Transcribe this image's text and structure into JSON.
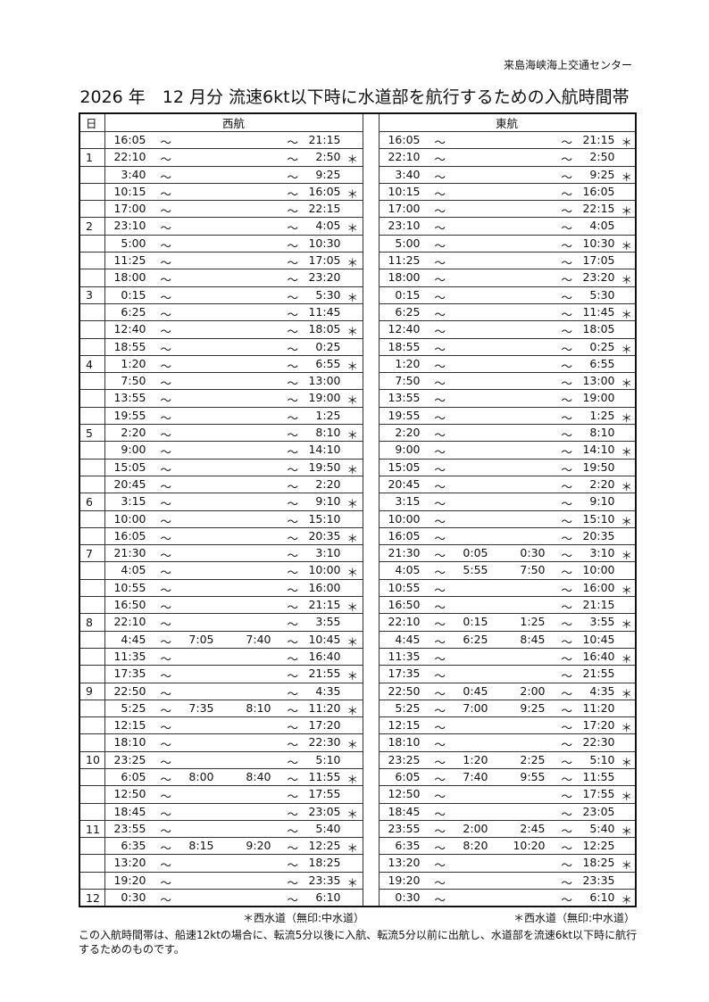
{
  "header": {
    "organization": "来島海峡海上交通センター",
    "title": "2026 年　12 月分 流速6kt以下時に水道部を航行するための入航時間帯"
  },
  "columns": {
    "day": "日",
    "west": "西航",
    "east": "東航"
  },
  "tilde": "～",
  "rows": [
    [
      "",
      "16:05",
      "",
      "",
      "21:15",
      "",
      "16:05",
      "",
      "",
      "21:15",
      "＊"
    ],
    [
      "1",
      "22:10",
      "",
      "",
      "2:50",
      "＊",
      "22:10",
      "",
      "",
      "2:50",
      ""
    ],
    [
      "",
      "3:40",
      "",
      "",
      "9:25",
      "",
      "3:40",
      "",
      "",
      "9:25",
      "＊"
    ],
    [
      "",
      "10:15",
      "",
      "",
      "16:05",
      "＊",
      "10:15",
      "",
      "",
      "16:05",
      ""
    ],
    [
      "",
      "17:00",
      "",
      "",
      "22:15",
      "",
      "17:00",
      "",
      "",
      "22:15",
      "＊"
    ],
    [
      "2",
      "23:10",
      "",
      "",
      "4:05",
      "＊",
      "23:10",
      "",
      "",
      "4:05",
      ""
    ],
    [
      "",
      "5:00",
      "",
      "",
      "10:30",
      "",
      "5:00",
      "",
      "",
      "10:30",
      "＊"
    ],
    [
      "",
      "11:25",
      "",
      "",
      "17:05",
      "＊",
      "11:25",
      "",
      "",
      "17:05",
      ""
    ],
    [
      "",
      "18:00",
      "",
      "",
      "23:20",
      "",
      "18:00",
      "",
      "",
      "23:20",
      "＊"
    ],
    [
      "3",
      "0:15",
      "",
      "",
      "5:30",
      "＊",
      "0:15",
      "",
      "",
      "5:30",
      ""
    ],
    [
      "",
      "6:25",
      "",
      "",
      "11:45",
      "",
      "6:25",
      "",
      "",
      "11:45",
      "＊"
    ],
    [
      "",
      "12:40",
      "",
      "",
      "18:05",
      "＊",
      "12:40",
      "",
      "",
      "18:05",
      ""
    ],
    [
      "",
      "18:55",
      "",
      "",
      "0:25",
      "",
      "18:55",
      "",
      "",
      "0:25",
      "＊"
    ],
    [
      "4",
      "1:20",
      "",
      "",
      "6:55",
      "＊",
      "1:20",
      "",
      "",
      "6:55",
      ""
    ],
    [
      "",
      "7:50",
      "",
      "",
      "13:00",
      "",
      "7:50",
      "",
      "",
      "13:00",
      "＊"
    ],
    [
      "",
      "13:55",
      "",
      "",
      "19:00",
      "＊",
      "13:55",
      "",
      "",
      "19:00",
      ""
    ],
    [
      "",
      "19:55",
      "",
      "",
      "1:25",
      "",
      "19:55",
      "",
      "",
      "1:25",
      "＊"
    ],
    [
      "5",
      "2:20",
      "",
      "",
      "8:10",
      "＊",
      "2:20",
      "",
      "",
      "8:10",
      ""
    ],
    [
      "",
      "9:00",
      "",
      "",
      "14:10",
      "",
      "9:00",
      "",
      "",
      "14:10",
      "＊"
    ],
    [
      "",
      "15:05",
      "",
      "",
      "19:50",
      "＊",
      "15:05",
      "",
      "",
      "19:50",
      ""
    ],
    [
      "",
      "20:45",
      "",
      "",
      "2:20",
      "",
      "20:45",
      "",
      "",
      "2:20",
      "＊"
    ],
    [
      "6",
      "3:15",
      "",
      "",
      "9:10",
      "＊",
      "3:15",
      "",
      "",
      "9:10",
      ""
    ],
    [
      "",
      "10:00",
      "",
      "",
      "15:10",
      "",
      "10:00",
      "",
      "",
      "15:10",
      "＊"
    ],
    [
      "",
      "16:05",
      "",
      "",
      "20:35",
      "＊",
      "16:05",
      "",
      "",
      "20:35",
      ""
    ],
    [
      "7",
      "21:30",
      "",
      "",
      "3:10",
      "",
      "21:30",
      "0:05",
      "0:30",
      "3:10",
      "＊"
    ],
    [
      "",
      "4:05",
      "",
      "",
      "10:00",
      "＊",
      "4:05",
      "5:55",
      "7:50",
      "10:00",
      ""
    ],
    [
      "",
      "10:55",
      "",
      "",
      "16:00",
      "",
      "10:55",
      "",
      "",
      "16:00",
      "＊"
    ],
    [
      "",
      "16:50",
      "",
      "",
      "21:15",
      "＊",
      "16:50",
      "",
      "",
      "21:15",
      ""
    ],
    [
      "8",
      "22:10",
      "",
      "",
      "3:55",
      "",
      "22:10",
      "0:15",
      "1:25",
      "3:55",
      "＊"
    ],
    [
      "",
      "4:45",
      "7:05",
      "7:40",
      "10:45",
      "＊",
      "4:45",
      "6:25",
      "8:45",
      "10:45",
      ""
    ],
    [
      "",
      "11:35",
      "",
      "",
      "16:40",
      "",
      "11:35",
      "",
      "",
      "16:40",
      "＊"
    ],
    [
      "",
      "17:35",
      "",
      "",
      "21:55",
      "＊",
      "17:35",
      "",
      "",
      "21:55",
      ""
    ],
    [
      "9",
      "22:50",
      "",
      "",
      "4:35",
      "",
      "22:50",
      "0:45",
      "2:00",
      "4:35",
      "＊"
    ],
    [
      "",
      "5:25",
      "7:35",
      "8:10",
      "11:20",
      "＊",
      "5:25",
      "7:00",
      "9:25",
      "11:20",
      ""
    ],
    [
      "",
      "12:15",
      "",
      "",
      "17:20",
      "",
      "12:15",
      "",
      "",
      "17:20",
      "＊"
    ],
    [
      "",
      "18:10",
      "",
      "",
      "22:30",
      "＊",
      "18:10",
      "",
      "",
      "22:30",
      ""
    ],
    [
      "10",
      "23:25",
      "",
      "",
      "5:10",
      "",
      "23:25",
      "1:20",
      "2:25",
      "5:10",
      "＊"
    ],
    [
      "",
      "6:05",
      "8:00",
      "8:40",
      "11:55",
      "＊",
      "6:05",
      "7:40",
      "9:55",
      "11:55",
      ""
    ],
    [
      "",
      "12:50",
      "",
      "",
      "17:55",
      "",
      "12:50",
      "",
      "",
      "17:55",
      "＊"
    ],
    [
      "",
      "18:45",
      "",
      "",
      "23:05",
      "＊",
      "18:45",
      "",
      "",
      "23:05",
      ""
    ],
    [
      "11",
      "23:55",
      "",
      "",
      "5:40",
      "",
      "23:55",
      "2:00",
      "2:45",
      "5:40",
      "＊"
    ],
    [
      "",
      "6:35",
      "8:15",
      "9:20",
      "12:25",
      "＊",
      "6:35",
      "8:20",
      "10:20",
      "12:25",
      ""
    ],
    [
      "",
      "13:20",
      "",
      "",
      "18:25",
      "",
      "13:20",
      "",
      "",
      "18:25",
      "＊"
    ],
    [
      "",
      "19:20",
      "",
      "",
      "23:35",
      "＊",
      "19:20",
      "",
      "",
      "23:35",
      ""
    ],
    [
      "12",
      "0:30",
      "",
      "",
      "6:10",
      "",
      "0:30",
      "",
      "",
      "6:10",
      "＊"
    ]
  ],
  "notes": {
    "west": "＊西水道（無印:中水道）",
    "east": "＊西水道（無印:中水道）"
  },
  "footer": "この入航時間帯は、船速12ktの場合に、転流5分以後に入航、転流5分以前に出航し、水道部を流速6kt以下時に航行するためのものです。"
}
